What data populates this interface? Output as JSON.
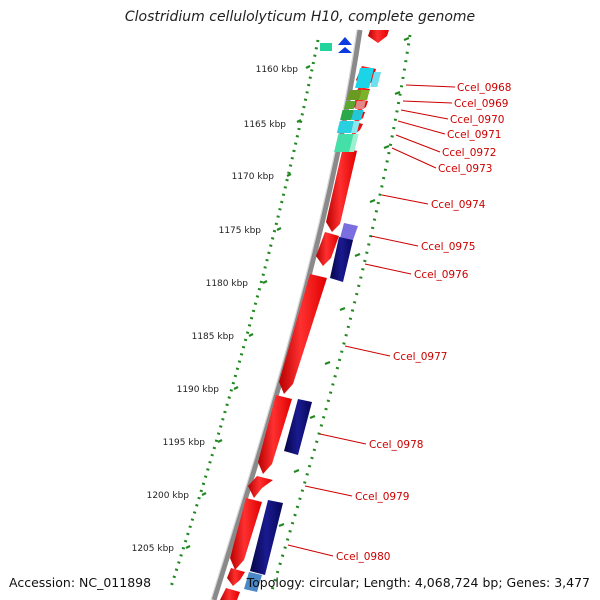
{
  "title": "Clostridium cellulolyticum H10, complete genome",
  "footer": {
    "accession": "Accession: NC_011898",
    "summary": "Topology: circular; Length: 4,068,724 bp; Genes: 3,477"
  },
  "colors": {
    "backbone": "#8a8a8a",
    "tick": "#228822",
    "forward_gene": "#ff1111",
    "reverse_gene": "#0a0a7a",
    "label": "#cc0000",
    "leader_line": "#cc0000"
  },
  "scale_labels": [
    {
      "kbp": 1160,
      "text": "1160 kbp"
    },
    {
      "kbp": 1165,
      "text": "1165 kbp"
    },
    {
      "kbp": 1170,
      "text": "1170 kbp"
    },
    {
      "kbp": 1175,
      "text": "1175 kbp"
    },
    {
      "kbp": 1180,
      "text": "1180 kbp"
    },
    {
      "kbp": 1185,
      "text": "1185 kbp"
    },
    {
      "kbp": 1190,
      "text": "1190 kbp"
    },
    {
      "kbp": 1195,
      "text": "1195 kbp"
    },
    {
      "kbp": 1200,
      "text": "1200 kbp"
    },
    {
      "kbp": 1205,
      "text": "1205 kbp"
    }
  ],
  "gene_labels": [
    {
      "name": "Ccel_0968"
    },
    {
      "name": "Ccel_0969"
    },
    {
      "name": "Ccel_0970"
    },
    {
      "name": "Ccel_0971"
    },
    {
      "name": "Ccel_0972"
    },
    {
      "name": "Ccel_0973"
    },
    {
      "name": "Ccel_0974"
    },
    {
      "name": "Ccel_0975"
    },
    {
      "name": "Ccel_0976"
    },
    {
      "name": "Ccel_0977"
    },
    {
      "name": "Ccel_0978"
    },
    {
      "name": "Ccel_0979"
    },
    {
      "name": "Ccel_0980"
    }
  ]
}
